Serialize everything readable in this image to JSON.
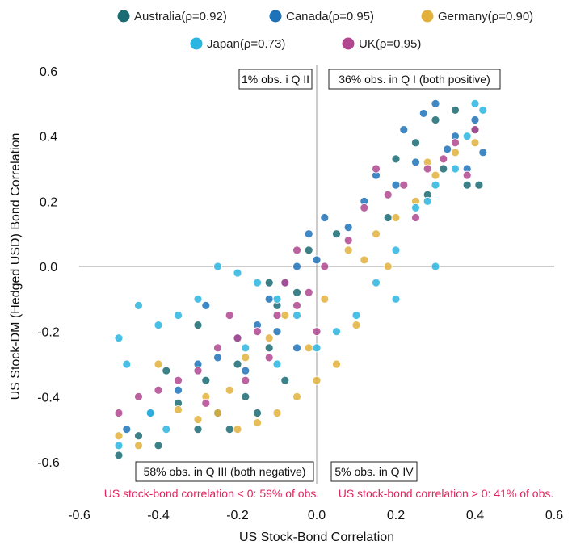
{
  "chart_data": {
    "type": "scatter",
    "xlabel": "US Stock-Bond Correlation",
    "ylabel": "US Stock-DM (Hedged USD) Bond Correlation",
    "xlim": [
      -0.6,
      0.6
    ],
    "ylim": [
      -0.6,
      0.6
    ],
    "xticks": [
      "-0.6",
      "-0.4",
      "-0.2",
      "0.0",
      "0.2",
      "0.4",
      "0.6"
    ],
    "yticks": [
      "0.6",
      "0.4",
      "0.2",
      "0.0",
      "-0.2",
      "-0.4",
      "-0.6"
    ],
    "grid": false,
    "legend_position": "top",
    "series": [
      {
        "name": "Australia(ρ=0.92)",
        "color": "#1a6b73",
        "points": [
          [
            0.35,
            0.48
          ],
          [
            0.3,
            0.45
          ],
          [
            0.25,
            0.38
          ],
          [
            0.2,
            0.33
          ],
          [
            0.4,
            0.42
          ],
          [
            0.32,
            0.3
          ],
          [
            0.38,
            0.25
          ],
          [
            0.28,
            0.22
          ],
          [
            0.18,
            0.15
          ],
          [
            0.41,
            0.25
          ],
          [
            0.05,
            0.1
          ],
          [
            -0.02,
            0.05
          ],
          [
            -0.05,
            -0.08
          ],
          [
            -0.1,
            -0.12
          ],
          [
            -0.12,
            -0.25
          ],
          [
            -0.2,
            -0.3
          ],
          [
            -0.18,
            -0.4
          ],
          [
            -0.25,
            -0.45
          ],
          [
            -0.3,
            -0.5
          ],
          [
            -0.4,
            -0.55
          ],
          [
            -0.45,
            -0.52
          ],
          [
            -0.5,
            -0.58
          ],
          [
            -0.35,
            -0.42
          ],
          [
            -0.28,
            -0.35
          ],
          [
            -0.22,
            -0.5
          ],
          [
            -0.15,
            -0.45
          ],
          [
            -0.08,
            -0.35
          ],
          [
            -0.3,
            -0.18
          ],
          [
            -0.38,
            -0.32
          ],
          [
            -0.12,
            -0.05
          ]
        ]
      },
      {
        "name": "Canada(ρ=0.95)",
        "color": "#1e73b8",
        "points": [
          [
            0.3,
            0.5
          ],
          [
            0.27,
            0.47
          ],
          [
            0.22,
            0.42
          ],
          [
            0.35,
            0.4
          ],
          [
            0.4,
            0.45
          ],
          [
            0.33,
            0.36
          ],
          [
            0.25,
            0.32
          ],
          [
            0.15,
            0.28
          ],
          [
            0.12,
            0.2
          ],
          [
            0.08,
            0.12
          ],
          [
            0.02,
            0.15
          ],
          [
            -0.02,
            0.1
          ],
          [
            0.0,
            0.02
          ],
          [
            -0.05,
            0.0
          ],
          [
            -0.08,
            -0.05
          ],
          [
            -0.12,
            -0.1
          ],
          [
            -0.15,
            -0.18
          ],
          [
            -0.2,
            -0.22
          ],
          [
            -0.25,
            -0.28
          ],
          [
            -0.3,
            -0.3
          ],
          [
            -0.35,
            -0.38
          ],
          [
            -0.42,
            -0.45
          ],
          [
            -0.48,
            -0.5
          ],
          [
            -0.18,
            -0.32
          ],
          [
            -0.05,
            -0.25
          ],
          [
            0.38,
            0.3
          ],
          [
            0.2,
            0.25
          ],
          [
            -0.28,
            -0.12
          ],
          [
            -0.1,
            -0.2
          ],
          [
            0.42,
            0.35
          ]
        ]
      },
      {
        "name": "Germany(ρ=0.90)",
        "color": "#e2b13c",
        "points": [
          [
            0.4,
            0.38
          ],
          [
            0.35,
            0.35
          ],
          [
            0.3,
            0.28
          ],
          [
            0.25,
            0.2
          ],
          [
            0.2,
            0.15
          ],
          [
            0.15,
            0.1
          ],
          [
            0.12,
            0.02
          ],
          [
            0.08,
            0.05
          ],
          [
            0.02,
            -0.1
          ],
          [
            -0.02,
            -0.25
          ],
          [
            0.0,
            -0.35
          ],
          [
            -0.05,
            -0.4
          ],
          [
            -0.1,
            -0.45
          ],
          [
            -0.15,
            -0.48
          ],
          [
            -0.2,
            -0.5
          ],
          [
            -0.25,
            -0.45
          ],
          [
            -0.3,
            -0.47
          ],
          [
            -0.35,
            -0.44
          ],
          [
            -0.22,
            -0.38
          ],
          [
            -0.18,
            -0.28
          ],
          [
            -0.12,
            -0.22
          ],
          [
            -0.08,
            -0.15
          ],
          [
            0.05,
            -0.3
          ],
          [
            0.1,
            -0.18
          ],
          [
            -0.45,
            -0.55
          ],
          [
            -0.5,
            -0.52
          ],
          [
            -0.4,
            -0.3
          ],
          [
            0.28,
            0.32
          ],
          [
            -0.28,
            -0.4
          ],
          [
            0.18,
            0.0
          ]
        ]
      },
      {
        "name": "Japan(ρ=0.73)",
        "color": "#2cb5e0",
        "points": [
          [
            0.4,
            0.5
          ],
          [
            0.38,
            0.4
          ],
          [
            0.35,
            0.3
          ],
          [
            0.3,
            0.25
          ],
          [
            0.25,
            0.18
          ],
          [
            0.2,
            0.05
          ],
          [
            0.15,
            -0.05
          ],
          [
            0.1,
            -0.15
          ],
          [
            0.05,
            -0.2
          ],
          [
            0.0,
            -0.25
          ],
          [
            -0.05,
            -0.15
          ],
          [
            -0.1,
            -0.1
          ],
          [
            -0.15,
            -0.05
          ],
          [
            -0.2,
            -0.02
          ],
          [
            -0.25,
            0.0
          ],
          [
            -0.3,
            -0.1
          ],
          [
            -0.35,
            -0.15
          ],
          [
            -0.4,
            -0.18
          ],
          [
            -0.45,
            -0.12
          ],
          [
            -0.5,
            -0.22
          ],
          [
            -0.48,
            -0.3
          ],
          [
            -0.42,
            -0.45
          ],
          [
            -0.38,
            -0.5
          ],
          [
            -0.5,
            -0.55
          ],
          [
            0.2,
            -0.1
          ],
          [
            0.28,
            0.2
          ],
          [
            -0.18,
            -0.25
          ],
          [
            -0.1,
            -0.3
          ],
          [
            0.3,
            0.0
          ],
          [
            0.42,
            0.48
          ]
        ]
      },
      {
        "name": "UK(ρ=0.95)",
        "color": "#b0478f",
        "points": [
          [
            0.4,
            0.42
          ],
          [
            0.35,
            0.38
          ],
          [
            0.32,
            0.33
          ],
          [
            0.28,
            0.3
          ],
          [
            0.22,
            0.25
          ],
          [
            0.18,
            0.22
          ],
          [
            0.12,
            0.18
          ],
          [
            0.08,
            0.08
          ],
          [
            0.02,
            0.0
          ],
          [
            -0.02,
            -0.08
          ],
          [
            -0.05,
            -0.12
          ],
          [
            -0.1,
            -0.15
          ],
          [
            -0.15,
            -0.2
          ],
          [
            -0.2,
            -0.22
          ],
          [
            -0.25,
            -0.25
          ],
          [
            -0.3,
            -0.32
          ],
          [
            -0.35,
            -0.35
          ],
          [
            -0.4,
            -0.38
          ],
          [
            -0.45,
            -0.4
          ],
          [
            -0.5,
            -0.45
          ],
          [
            -0.12,
            -0.28
          ],
          [
            -0.18,
            -0.35
          ],
          [
            -0.08,
            -0.05
          ],
          [
            0.25,
            0.15
          ],
          [
            0.38,
            0.28
          ],
          [
            -0.22,
            -0.15
          ],
          [
            0.0,
            -0.2
          ],
          [
            -0.28,
            -0.42
          ],
          [
            0.15,
            0.3
          ],
          [
            -0.05,
            0.05
          ]
        ]
      }
    ],
    "annotations": {
      "q2": "1% obs. i Q II",
      "q1": "36% obs. in Q I (both positive)",
      "q3": "58% obs. in Q III (both negative)",
      "q4": "5% obs. in Q IV",
      "neg_note": "US stock-bond correlation < 0: 59% of obs.",
      "pos_note": "US stock-bond correlation > 0: 41% of obs.",
      "note_color": "#e0245e"
    }
  }
}
